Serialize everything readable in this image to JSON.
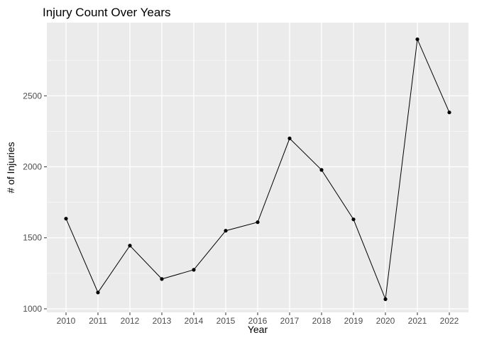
{
  "chart_data": {
    "type": "line",
    "title": "Injury Count Over Years",
    "xlabel": "Year",
    "ylabel": "# of Injuries",
    "x": [
      "2010",
      "2011",
      "2012",
      "2013",
      "2014",
      "2015",
      "2016",
      "2017",
      "2018",
      "2019",
      "2020",
      "2021",
      "2022"
    ],
    "series": [
      {
        "values": [
          1635,
          1115,
          1445,
          1210,
          1275,
          1550,
          1610,
          2200,
          1978,
          1630,
          1068,
          2898,
          2383
        ]
      }
    ],
    "yticks": [
      1000,
      1500,
      2000,
      2500
    ],
    "ylim": [
      975,
      3015
    ],
    "grid": true,
    "legend": "none",
    "colors": {
      "panel": "#ebebeb",
      "grid_major": "#ffffff",
      "line": "#000000",
      "point": "#000000",
      "tick": "#333333"
    }
  }
}
